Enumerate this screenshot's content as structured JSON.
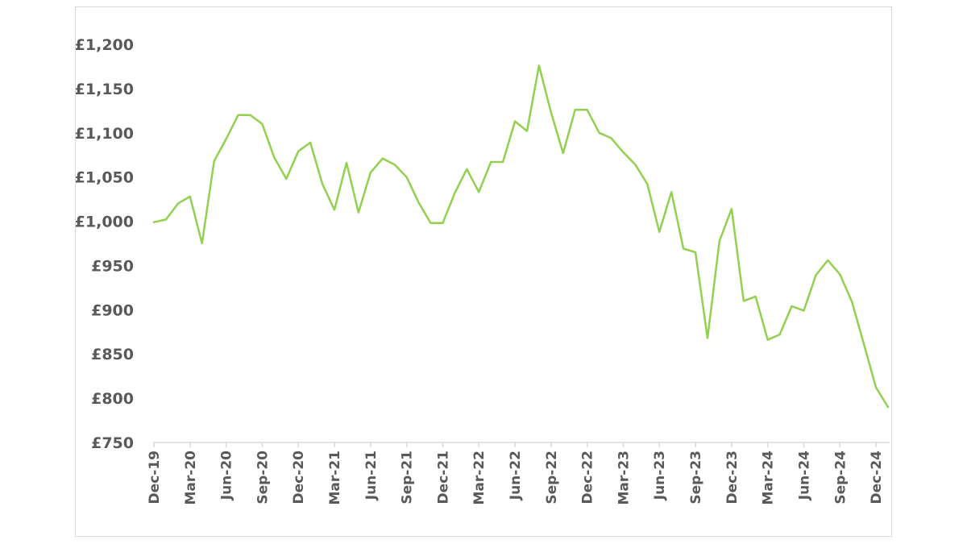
{
  "chart_data": {
    "type": "line",
    "title": "",
    "xlabel": "",
    "ylabel": "",
    "ylim": [
      750,
      1200
    ],
    "yticks": [
      750,
      800,
      850,
      900,
      950,
      1000,
      1050,
      1100,
      1150,
      1200
    ],
    "ytick_labels": [
      "£750",
      "£800",
      "£850",
      "£900",
      "£950",
      "£1,000",
      "£1,050",
      "£1,100",
      "£1,150",
      "£1,200"
    ],
    "grid": false,
    "legend": "none",
    "color": "#92d050",
    "x": [
      "Dec-19",
      "Jan-20",
      "Feb-20",
      "Mar-20",
      "Apr-20",
      "May-20",
      "Jun-20",
      "Jul-20",
      "Aug-20",
      "Sep-20",
      "Oct-20",
      "Nov-20",
      "Dec-20",
      "Jan-21",
      "Feb-21",
      "Mar-21",
      "Apr-21",
      "May-21",
      "Jun-21",
      "Jul-21",
      "Aug-21",
      "Sep-21",
      "Oct-21",
      "Nov-21",
      "Dec-21",
      "Jan-22",
      "Feb-22",
      "Mar-22",
      "Apr-22",
      "May-22",
      "Jun-22",
      "Jul-22",
      "Aug-22",
      "Sep-22",
      "Oct-22",
      "Nov-22",
      "Dec-22",
      "Jan-23",
      "Feb-23",
      "Mar-23",
      "Apr-23",
      "May-23",
      "Jun-23",
      "Jul-23",
      "Aug-23",
      "Sep-23",
      "Oct-23",
      "Nov-23",
      "Dec-23",
      "Jan-24",
      "Feb-24",
      "Mar-24",
      "Apr-24",
      "May-24",
      "Jun-24",
      "Jul-24",
      "Aug-24",
      "Sep-24",
      "Oct-24",
      "Nov-24",
      "Dec-24",
      "Jan-25"
    ],
    "tick_labels": [
      "Dec-19",
      "Mar-20",
      "Jun-20",
      "Sep-20",
      "Dec-20",
      "Mar-21",
      "Jun-21",
      "Sep-21",
      "Dec-21",
      "Mar-22",
      "Jun-22",
      "Sep-22",
      "Dec-22",
      "Mar-23",
      "Jun-23",
      "Sep-23",
      "Dec-23",
      "Mar-24",
      "Jun-24",
      "Sep-24",
      "Dec-24"
    ],
    "series": [
      {
        "values": [
          999,
          1002,
          1020,
          1028,
          975,
          1068,
          1093,
          1120,
          1120,
          1110,
          1072,
          1048,
          1079,
          1089,
          1042,
          1013,
          1066,
          1010,
          1055,
          1071,
          1064,
          1050,
          1021,
          998,
          998,
          1032,
          1059,
          1033,
          1067,
          1067,
          1113,
          1102,
          1176,
          1123,
          1077,
          1126,
          1126,
          1100,
          1094,
          1078,
          1064,
          1042,
          988,
          1033,
          969,
          965,
          868,
          978,
          1014,
          910,
          915,
          866,
          872,
          904,
          899,
          939,
          956,
          940,
          909,
          861,
          812,
          790
        ]
      }
    ]
  }
}
